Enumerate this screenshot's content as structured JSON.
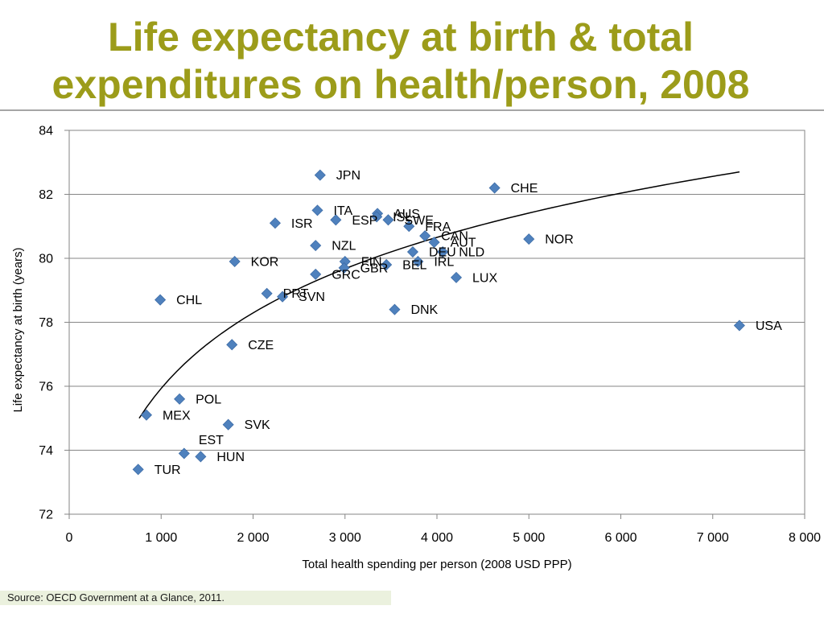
{
  "colors": {
    "title": "#9c9c1a",
    "marker": "#4f81bd",
    "trendline": "#000000",
    "gridline": "#868686",
    "source_background": "#ebf1de"
  },
  "chart_data": {
    "type": "scatter",
    "title": "Life expectancy at birth & total expenditures on health/person, 2008",
    "xlabel": "Total health spending per person (2008 USD PPP)",
    "ylabel": "Life expectancy at birth (years)",
    "xlim": [
      0,
      8000
    ],
    "ylim": [
      72,
      84
    ],
    "x_ticks": [
      0,
      1000,
      2000,
      3000,
      4000,
      5000,
      6000,
      7000,
      8000
    ],
    "x_tick_labels": [
      "0",
      "1 000",
      "2 000",
      "3 000",
      "4 000",
      "5 000",
      "6 000",
      "7 000",
      "8 000"
    ],
    "y_ticks": [
      72,
      74,
      76,
      78,
      80,
      82,
      84
    ],
    "y_tick_labels": [
      "72",
      "74",
      "76",
      "78",
      "80",
      "82",
      "84"
    ],
    "grid": "horizontal",
    "points": [
      {
        "label": "JPN",
        "x": 2729,
        "y": 82.6
      },
      {
        "label": "CHE",
        "x": 4627,
        "y": 82.2
      },
      {
        "label": "ITA",
        "x": 2700,
        "y": 81.5
      },
      {
        "label": "ESP",
        "x": 2900,
        "y": 81.2
      },
      {
        "label": "ISR",
        "x": 2240,
        "y": 81.1
      },
      {
        "label": "AUS",
        "x": 3353,
        "y": 81.4
      },
      {
        "label": "ISL",
        "x": 3345,
        "y": 81.3
      },
      {
        "label": "SWE",
        "x": 3470,
        "y": 81.2
      },
      {
        "label": "FRA",
        "x": 3696,
        "y": 81.0
      },
      {
        "label": "CAN",
        "x": 3870,
        "y": 80.7
      },
      {
        "label": "AUT",
        "x": 3970,
        "y": 80.5
      },
      {
        "label": "NOR",
        "x": 5000,
        "y": 80.6
      },
      {
        "label": "NZL",
        "x": 2680,
        "y": 80.4
      },
      {
        "label": "DEU",
        "x": 3737,
        "y": 80.2
      },
      {
        "label": "NLD",
        "x": 4063,
        "y": 80.2
      },
      {
        "label": "KOR",
        "x": 1800,
        "y": 79.9
      },
      {
        "label": "FIN",
        "x": 3000,
        "y": 79.9
      },
      {
        "label": "GBR",
        "x": 2990,
        "y": 79.7
      },
      {
        "label": "BEL",
        "x": 3450,
        "y": 79.8
      },
      {
        "label": "IRL",
        "x": 3793,
        "y": 79.9
      },
      {
        "label": "GRC",
        "x": 2680,
        "y": 79.5
      },
      {
        "label": "LUX",
        "x": 4210,
        "y": 79.4
      },
      {
        "label": "CHL",
        "x": 990,
        "y": 78.7
      },
      {
        "label": "PRT",
        "x": 2150,
        "y": 78.9
      },
      {
        "label": "SVN",
        "x": 2320,
        "y": 78.8
      },
      {
        "label": "DNK",
        "x": 3540,
        "y": 78.4
      },
      {
        "label": "USA",
        "x": 7290,
        "y": 77.9
      },
      {
        "label": "CZE",
        "x": 1770,
        "y": 77.3
      },
      {
        "label": "POL",
        "x": 1200,
        "y": 75.6
      },
      {
        "label": "MEX",
        "x": 840,
        "y": 75.1
      },
      {
        "label": "SVK",
        "x": 1730,
        "y": 74.8
      },
      {
        "label": "EST",
        "x": 1250,
        "y": 73.9
      },
      {
        "label": "HUN",
        "x": 1430,
        "y": 73.8
      },
      {
        "label": "TUR",
        "x": 750,
        "y": 73.4
      }
    ],
    "trendline": {
      "type": "logarithmic",
      "x": [
        761,
        7291
      ],
      "y": [
        75.0,
        82.7
      ]
    }
  },
  "source": "Source: OECD Government at a Glance, 2011."
}
